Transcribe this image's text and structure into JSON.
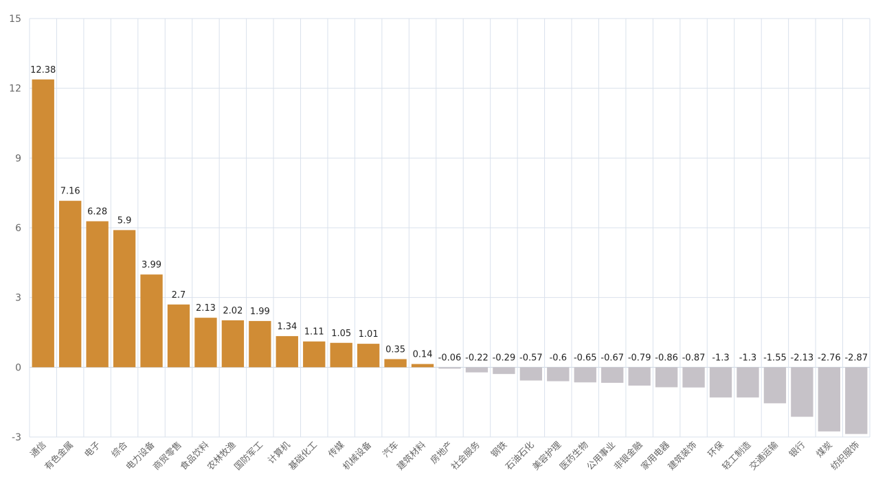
{
  "chart_data": {
    "type": "bar",
    "categories": [
      "通信",
      "有色金属",
      "电子",
      "综合",
      "电力设备",
      "商贸零售",
      "食品饮料",
      "农林牧渔",
      "国防军工",
      "计算机",
      "基础化工",
      "传媒",
      "机械设备",
      "汽车",
      "建筑材料",
      "房地产",
      "社会服务",
      "钢铁",
      "石油石化",
      "美容护理",
      "医药生物",
      "公用事业",
      "非银金融",
      "家用电器",
      "建筑装饰",
      "环保",
      "轻工制造",
      "交通运输",
      "银行",
      "煤炭",
      "纺织服饰"
    ],
    "values": [
      12.38,
      7.16,
      6.28,
      5.9,
      3.99,
      2.7,
      2.13,
      2.02,
      1.99,
      1.34,
      1.11,
      1.05,
      1.01,
      0.35,
      0.14,
      -0.06,
      -0.22,
      -0.29,
      -0.57,
      -0.6,
      -0.65,
      -0.67,
      -0.79,
      -0.86,
      -0.87,
      -1.3,
      -1.3,
      -1.55,
      -2.13,
      -2.76,
      -2.87
    ],
    "value_labels": [
      "12.38",
      "7.16",
      "6.28",
      "5.9",
      "3.99",
      "2.7",
      "2.13",
      "2.02",
      "1.99",
      "1.34",
      "1.11",
      "1.05",
      "1.01",
      "0.35",
      "0.14",
      "-0.06",
      "-0.22",
      "-0.29",
      "-0.57",
      "-0.6",
      "-0.65",
      "-0.67",
      "-0.79",
      "-0.86",
      "-0.87",
      "-1.3",
      "-1.3",
      "-1.55",
      "-2.13",
      "-2.76",
      "-2.87"
    ],
    "yticks": [
      "-3",
      "0",
      "3",
      "6",
      "9",
      "12",
      "15"
    ],
    "ylim": [
      -3,
      15
    ],
    "grid": true,
    "colors": {
      "positive": "#d08c35",
      "negative": "#c6c2c8",
      "grid": "#d9e1ec"
    }
  }
}
